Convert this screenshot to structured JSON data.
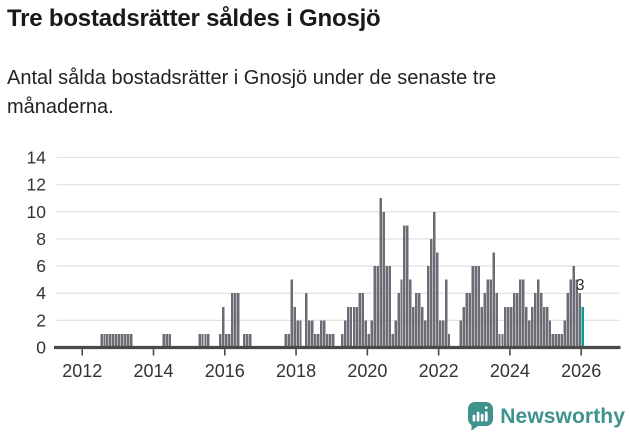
{
  "header": {
    "title": "Tre bostadsrätter såldes i Gnosjö",
    "subtitle": "Antal sålda bostadsrätter i Gnosjö under de senaste tre månaderna.",
    "subtitle_lines": [
      "Antal sålda bostadsrätter i Gnosjö under de senaste tre",
      "månaderna."
    ]
  },
  "footer": {
    "brand": "Newsworthy"
  },
  "colors": {
    "bar": "#6c6c74",
    "highlight": "#0b9a97",
    "axis": "#4a4a4a",
    "grid": "#e3e3e3",
    "tick_text": "#333333",
    "value_label": "#2b2b2b",
    "brand": "#3e938e"
  },
  "chart_data": {
    "type": "bar",
    "title": "Tre bostadsrätter såldes i Gnosjö",
    "subtitle": "Antal sålda bostadsrätter i Gnosjö under de senaste tre månaderna.",
    "xlabel": "",
    "ylabel": "",
    "grid": true,
    "legend": false,
    "ylim": [
      0,
      14
    ],
    "y_ticks": [
      0,
      2,
      4,
      6,
      8,
      10,
      12,
      14
    ],
    "x_tick_labels": [
      "2012",
      "2014",
      "2016",
      "2018",
      "2020",
      "2022",
      "2024",
      "2026"
    ],
    "x_start_month": "2011-04",
    "x_end_month": "2026-01",
    "values": [
      0,
      0,
      0,
      0,
      0,
      0,
      0,
      0,
      0,
      0,
      0,
      0,
      0,
      0,
      0,
      1,
      1,
      1,
      1,
      1,
      1,
      1,
      1,
      1,
      1,
      1,
      0,
      0,
      0,
      0,
      0,
      0,
      0,
      0,
      0,
      0,
      1,
      1,
      1,
      0,
      0,
      0,
      0,
      0,
      0,
      0,
      0,
      0,
      1,
      1,
      1,
      1,
      0,
      0,
      0,
      1,
      3,
      1,
      1,
      4,
      4,
      4,
      0,
      1,
      1,
      1,
      0,
      0,
      0,
      0,
      0,
      0,
      0,
      0,
      0,
      0,
      0,
      1,
      1,
      5,
      3,
      2,
      2,
      0,
      4,
      2,
      2,
      1,
      1,
      2,
      2,
      1,
      1,
      1,
      0,
      0,
      1,
      2,
      3,
      3,
      3,
      3,
      4,
      4,
      2,
      1,
      2,
      6,
      6,
      11,
      10,
      6,
      6,
      1,
      2,
      4,
      5,
      9,
      9,
      5,
      3,
      4,
      4,
      3,
      2,
      6,
      8,
      10,
      7,
      2,
      2,
      5,
      1,
      0,
      0,
      0,
      2,
      3,
      4,
      4,
      6,
      6,
      6,
      3,
      4,
      5,
      5,
      7,
      4,
      1,
      1,
      3,
      3,
      3,
      4,
      4,
      5,
      5,
      3,
      2,
      3,
      4,
      5,
      4,
      3,
      3,
      2,
      1,
      1,
      1,
      1,
      2,
      4,
      5,
      6,
      5,
      4,
      3
    ],
    "highlight_last": {
      "value": 3,
      "label": "3"
    }
  }
}
